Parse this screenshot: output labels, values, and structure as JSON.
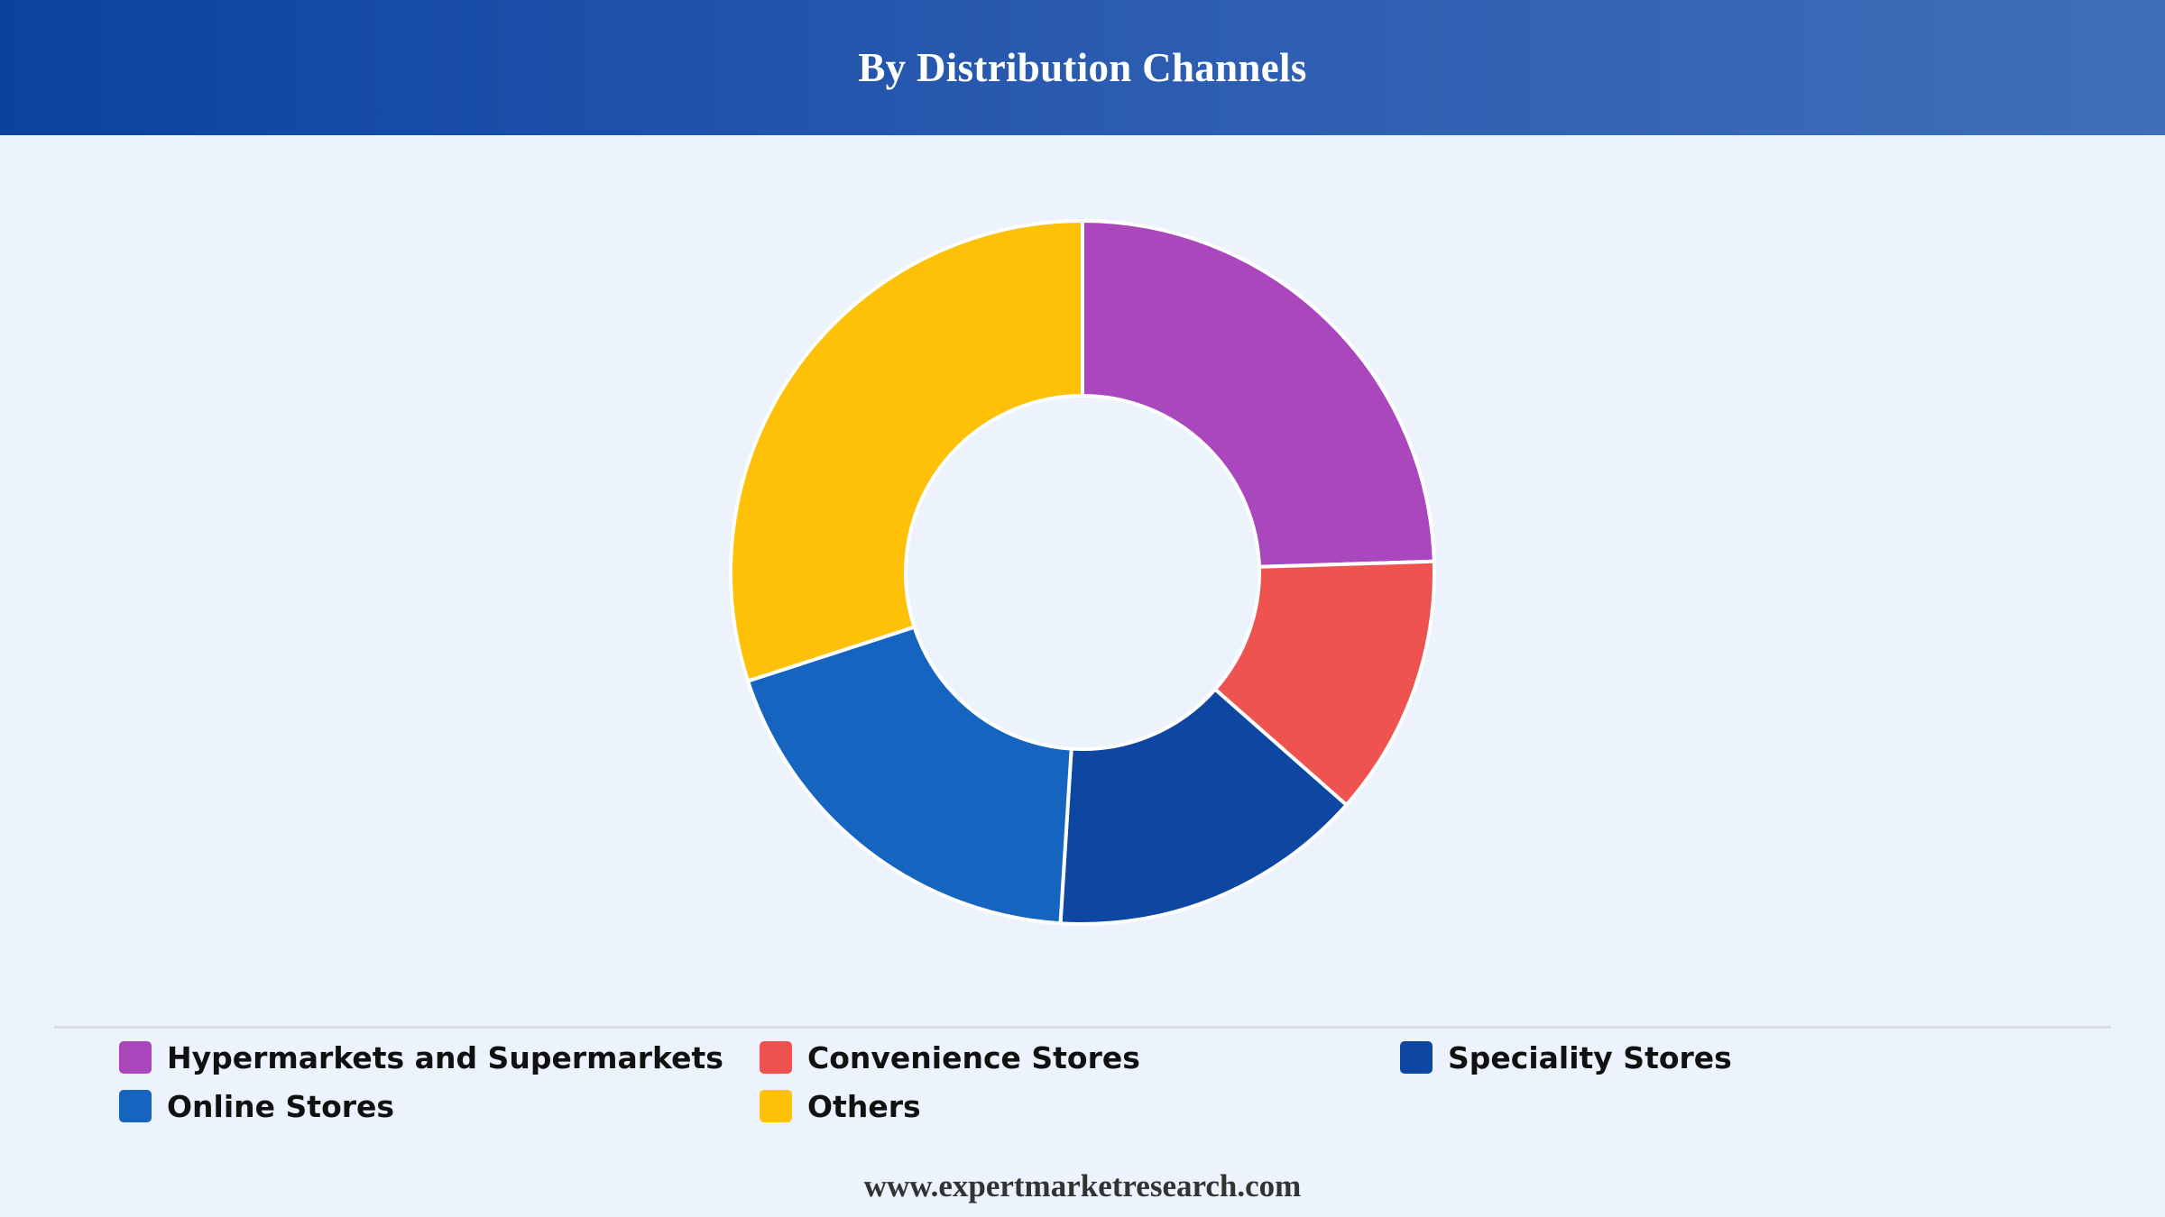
{
  "header": {
    "title": "By Distribution Channels"
  },
  "chart_data": {
    "type": "pie",
    "donut": true,
    "title": "By Distribution Channels",
    "legend_position": "bottom",
    "categories": [
      "Hypermarkets and Supermarkets",
      "Convenience Stores",
      "Speciality Stores",
      "Online Stores",
      "Others"
    ],
    "values": [
      24.5,
      12.0,
      14.5,
      19.0,
      30.0
    ],
    "colors": [
      "#ab47bc",
      "#ef5350",
      "#0d47a1",
      "#1565c0",
      "#ffc107"
    ]
  },
  "legend": {
    "items": [
      {
        "label": "Hypermarkets and Supermarkets",
        "color": "#ab47bc"
      },
      {
        "label": "Convenience Stores",
        "color": "#ef5350"
      },
      {
        "label": "Speciality Stores",
        "color": "#0d47a1"
      },
      {
        "label": "Online Stores",
        "color": "#1565c0"
      },
      {
        "label": "Others",
        "color": "#ffc107"
      }
    ]
  },
  "footer": {
    "source": "www.expertmarketresearch.com"
  }
}
